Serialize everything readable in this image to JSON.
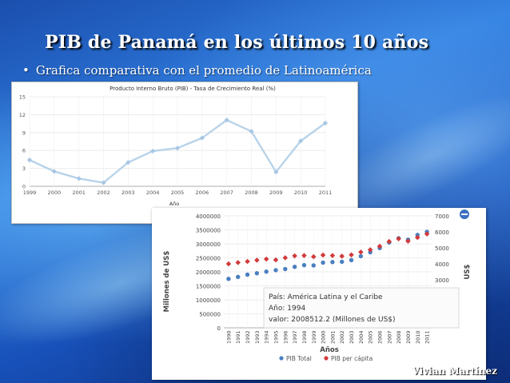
{
  "slide": {
    "title": "PIB de Panamá en los últimos 10 años",
    "bullet_marker": "•",
    "bullet": "Grafica comparativa con el promedio de Latinoamérica",
    "author": "Vivian Martínez"
  },
  "colors": {
    "chart1_line": "#b8d3ea",
    "chart1_marker": "#a8c6e4",
    "pib_total": "#4a7fc1",
    "pib_per_capita": "#d23a3a"
  },
  "chart_data": [
    {
      "type": "line",
      "title": "Producto Interno Bruto (PIB) - Tasa de Crecimiento Real (%)",
      "xlabel": "Año",
      "ylabel": "",
      "x": [
        "1999",
        "2000",
        "2001",
        "2002",
        "2003",
        "2004",
        "2005",
        "2006",
        "2007",
        "2008",
        "2009",
        "2010",
        "2011"
      ],
      "values": [
        4.4,
        2.5,
        1.3,
        0.6,
        4.0,
        5.9,
        6.4,
        8.1,
        11.1,
        9.2,
        2.4,
        7.6,
        10.6
      ],
      "ylim": [
        0,
        15
      ],
      "yticks": [
        "0",
        "3",
        "6",
        "9",
        "12",
        "15"
      ],
      "grid": true
    },
    {
      "type": "line",
      "title": "",
      "xlabel": "Años",
      "ylabel": "Millones de US$",
      "y2label": "US$",
      "x": [
        "1990",
        "1991",
        "1992",
        "1993",
        "1994",
        "1995",
        "1996",
        "1997",
        "1998",
        "1999",
        "2000",
        "2001",
        "2002",
        "2003",
        "2004",
        "2005",
        "2006",
        "2007",
        "2008",
        "2009",
        "2010",
        "2011"
      ],
      "ylim": [
        0,
        4000000
      ],
      "yticks": [
        "0",
        "500000",
        "1000000",
        "1500000",
        "2000000",
        "2500000",
        "3000000",
        "3500000",
        "4000000"
      ],
      "y2lim": [
        0,
        7000
      ],
      "y2ticks": [
        "3000",
        "4000",
        "5000",
        "6000",
        "7000"
      ],
      "series": [
        {
          "name": "PIB Total",
          "axis": "left",
          "values": [
            1750000,
            1820000,
            1900000,
            1950000,
            2008512,
            2060000,
            2100000,
            2180000,
            2240000,
            2230000,
            2330000,
            2350000,
            2360000,
            2420000,
            2560000,
            2700000,
            2850000,
            3050000,
            3200000,
            3150000,
            3320000,
            3430000
          ]
        },
        {
          "name": "PIB per cápita",
          "axis": "right",
          "values": [
            4000,
            4080,
            4150,
            4230,
            4300,
            4250,
            4380,
            4500,
            4520,
            4450,
            4550,
            4520,
            4480,
            4560,
            4740,
            4880,
            5100,
            5400,
            5570,
            5420,
            5650,
            5870
          ]
        }
      ],
      "legend": "bottom",
      "tooltip": {
        "pais": "País: América Latina y el Caribe",
        "anio": "Año: 1994",
        "valor": "valor: 2008512.2 (Millones de US$)"
      },
      "grid": true
    }
  ]
}
